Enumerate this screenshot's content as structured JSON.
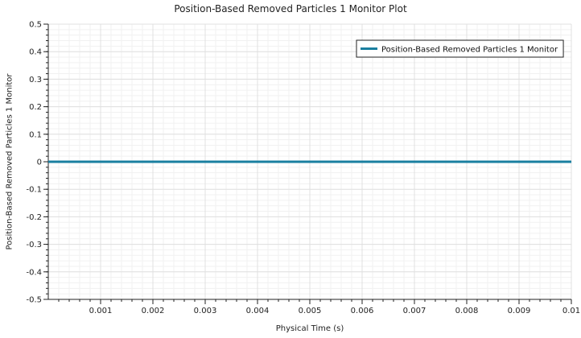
{
  "chart_data": {
    "type": "line",
    "title": "Position-Based Removed Particles 1 Monitor Plot",
    "xlabel": "Physical Time (s)",
    "ylabel": "Position-Based Removed Particles 1 Monitor",
    "xlim": [
      0,
      0.01
    ],
    "ylim": [
      -0.5,
      0.5
    ],
    "x_ticks": [
      "0.001",
      "0.002",
      "0.003",
      "0.004",
      "0.005",
      "0.006",
      "0.007",
      "0.008",
      "0.009",
      "0.01"
    ],
    "x_tick_values": [
      0.001,
      0.002,
      0.003,
      0.004,
      0.005,
      0.006,
      0.007,
      0.008,
      0.009,
      0.01
    ],
    "y_ticks": [
      "0.5",
      "0.4",
      "0.3",
      "0.2",
      "0.1",
      "0",
      "-0.1",
      "-0.2",
      "-0.3",
      "-0.4",
      "-0.5"
    ],
    "y_tick_values": [
      0.5,
      0.4,
      0.3,
      0.2,
      0.1,
      0,
      -0.1,
      -0.2,
      -0.3,
      -0.4,
      -0.5
    ],
    "grid": true,
    "legend_position": "top-right",
    "series": [
      {
        "name": "Position-Based Removed Particles 1 Monitor",
        "color": "#1a7fa0",
        "x": [
          0,
          0.001,
          0.002,
          0.003,
          0.004,
          0.005,
          0.006,
          0.007,
          0.008,
          0.009,
          0.01
        ],
        "y": [
          0,
          0,
          0,
          0,
          0,
          0,
          0,
          0,
          0,
          0,
          0
        ]
      }
    ]
  }
}
